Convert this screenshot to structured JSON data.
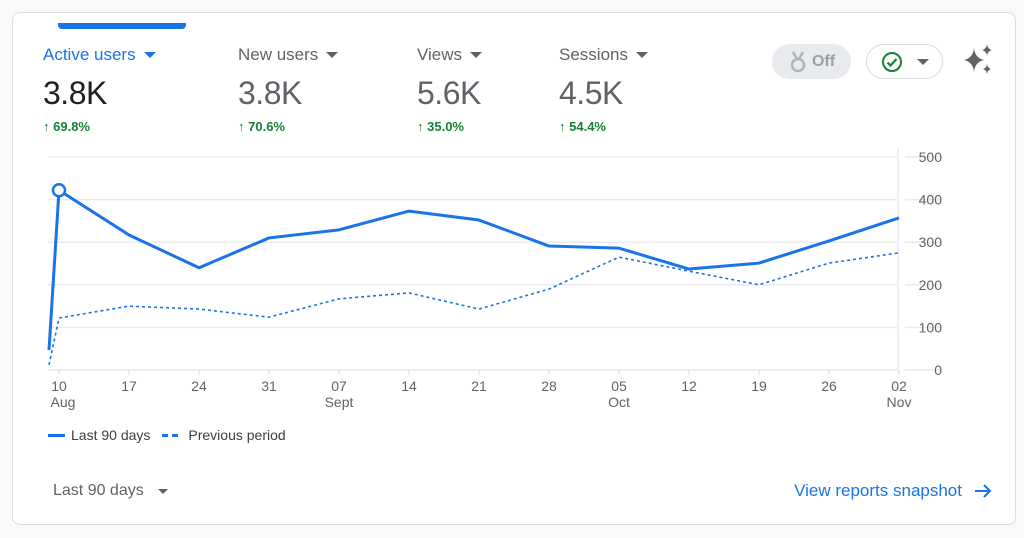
{
  "metrics": [
    {
      "label": "Active users",
      "value": "3.8K",
      "change": "69.8%",
      "active": true
    },
    {
      "label": "New users",
      "value": "3.8K",
      "change": "70.6%",
      "active": false
    },
    {
      "label": "Views",
      "value": "5.6K",
      "change": "35.0%",
      "active": false
    },
    {
      "label": "Sessions",
      "value": "4.5K",
      "change": "54.4%",
      "active": false
    }
  ],
  "toolbar": {
    "benchmark_label": "Off",
    "benchmark_icon": "medal-icon",
    "status_icon": "check-circle-icon",
    "insights_icon": "sparkle-icon"
  },
  "colors": {
    "accent": "#1a73e8",
    "positive": "#188038",
    "check": "#188038"
  },
  "chart_data": {
    "type": "line",
    "x": [
      "Aug 09",
      "Aug 10",
      "Aug 17",
      "Aug 24",
      "Aug 31",
      "Sep 07",
      "Sep 14",
      "Sep 21",
      "Sep 28",
      "Oct 05",
      "Oct 12",
      "Oct 19",
      "Oct 26",
      "Nov 02"
    ],
    "series": [
      {
        "name": "Last 90 days",
        "style": "solid",
        "values": [
          47,
          422,
          317,
          240,
          310,
          329,
          373,
          352,
          291,
          286,
          237,
          251,
          303,
          357
        ]
      },
      {
        "name": "Previous period",
        "style": "dashed",
        "values": [
          12,
          122,
          150,
          143,
          124,
          167,
          181,
          143,
          190,
          265,
          232,
          200,
          251,
          275
        ]
      }
    ],
    "x_ticks": [
      {
        "day": "10",
        "month": "Aug"
      },
      {
        "day": "17",
        "month": ""
      },
      {
        "day": "24",
        "month": ""
      },
      {
        "day": "31",
        "month": ""
      },
      {
        "day": "07",
        "month": "Sept"
      },
      {
        "day": "14",
        "month": ""
      },
      {
        "day": "21",
        "month": ""
      },
      {
        "day": "28",
        "month": ""
      },
      {
        "day": "05",
        "month": "Oct"
      },
      {
        "day": "12",
        "month": ""
      },
      {
        "day": "19",
        "month": ""
      },
      {
        "day": "26",
        "month": ""
      },
      {
        "day": "02",
        "month": "Nov"
      }
    ],
    "y_ticks": [
      "0",
      "100",
      "200",
      "300",
      "400",
      "500"
    ],
    "ylim": [
      0,
      500
    ],
    "y_axis_side": "right",
    "grid": true,
    "highlight_point": "Aug 10",
    "legend_placement": "bottom-left"
  },
  "footer": {
    "date_range": "Last 90 days",
    "view_link": "View reports snapshot"
  }
}
